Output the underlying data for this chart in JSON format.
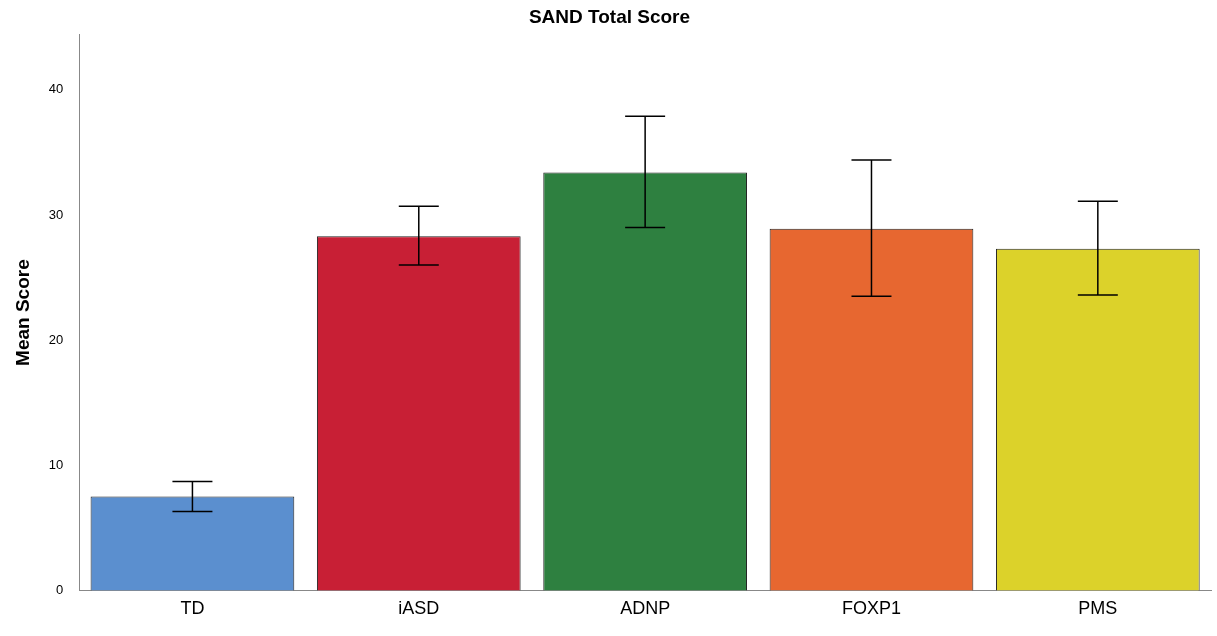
{
  "chart_data": {
    "type": "bar",
    "title": "SAND Total Score",
    "ylabel": "Mean Score",
    "categories": [
      "TD",
      "iASD",
      "ADNP",
      "FOXP1",
      "PMS"
    ],
    "values": [
      7.5,
      28.3,
      33.4,
      28.9,
      27.3
    ],
    "colors": [
      "#5b8fcf",
      "#c81f35",
      "#2e8040",
      "#e76730",
      "#dcd22a"
    ],
    "errors": [
      [
        6.3,
        8.7
      ],
      [
        26.0,
        30.7
      ],
      [
        29.0,
        37.9
      ],
      [
        23.5,
        34.4
      ],
      [
        23.6,
        31.1
      ]
    ],
    "ylim": [
      0,
      44.4
    ],
    "yticks": [
      0,
      10,
      20,
      30,
      40
    ],
    "grid": false,
    "legend": false
  }
}
